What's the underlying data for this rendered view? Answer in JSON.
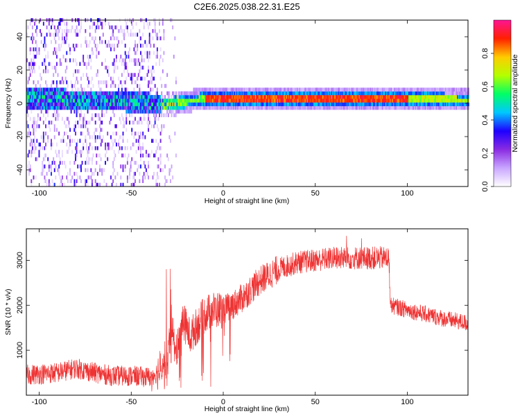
{
  "title": "C2E6.2025.038.22.31.E25",
  "chart_data": [
    {
      "type": "heatmap",
      "xlabel": "Height of straight line (km)",
      "ylabel": "Frequency (Hz)",
      "xlim": [
        -107,
        133
      ],
      "ylim": [
        -50,
        50
      ],
      "xticks": [
        -100,
        -50,
        0,
        50,
        100
      ],
      "yticks": [
        -40,
        -20,
        0,
        20,
        40
      ],
      "colorbar": {
        "label": "Normalized spectral amplitude",
        "range": [
          0,
          1
        ],
        "ticks": [
          "0.0",
          "0.2",
          "0.4",
          "0.6",
          "0.8"
        ],
        "colors": [
          "#ffffff",
          "#c9a6ff",
          "#8a2be2",
          "#1e00ff",
          "#00c8ff",
          "#00ff66",
          "#b4ff00",
          "#ffcc00",
          "#ff2000",
          "#ff1493"
        ]
      },
      "band": {
        "description_free": true,
        "center_profile": [
          {
            "x": -107,
            "f": 2
          },
          {
            "x": -80,
            "f": 1
          },
          {
            "x": -60,
            "f": 0.5
          },
          {
            "x": -40,
            "f": -1
          },
          {
            "x": -32,
            "f": -2
          },
          {
            "x": -20,
            "f": 0
          },
          {
            "x": -10,
            "f": 2
          },
          {
            "x": 0,
            "f": 2
          },
          {
            "x": 50,
            "f": 2
          },
          {
            "x": 100,
            "f": 2
          },
          {
            "x": 133,
            "f": 1
          }
        ]
      }
    },
    {
      "type": "line",
      "xlabel": "Height of straight line (km)",
      "ylabel": "SNR (10 * v/v)",
      "xlim": [
        -107,
        133
      ],
      "ylim": [
        0,
        3700
      ],
      "xticks": [
        -100,
        -50,
        0,
        50,
        100
      ],
      "yticks": [
        1000,
        2000,
        3000
      ],
      "color": "#ee3333",
      "trend": [
        {
          "x": -107,
          "y": 450
        },
        {
          "x": -90,
          "y": 500
        },
        {
          "x": -80,
          "y": 600
        },
        {
          "x": -70,
          "y": 500
        },
        {
          "x": -60,
          "y": 430
        },
        {
          "x": -50,
          "y": 430
        },
        {
          "x": -40,
          "y": 400
        },
        {
          "x": -36,
          "y": 500
        },
        {
          "x": -30,
          "y": 950
        },
        {
          "x": -28,
          "y": 1700
        },
        {
          "x": -26,
          "y": 800
        },
        {
          "x": -22,
          "y": 1700
        },
        {
          "x": -18,
          "y": 1300
        },
        {
          "x": -15,
          "y": 1500
        },
        {
          "x": -10,
          "y": 1800
        },
        {
          "x": -5,
          "y": 1900
        },
        {
          "x": 0,
          "y": 1900
        },
        {
          "x": 5,
          "y": 2000
        },
        {
          "x": 10,
          "y": 2150
        },
        {
          "x": 20,
          "y": 2550
        },
        {
          "x": 30,
          "y": 2800
        },
        {
          "x": 40,
          "y": 2950
        },
        {
          "x": 50,
          "y": 3000
        },
        {
          "x": 60,
          "y": 3050
        },
        {
          "x": 70,
          "y": 3050
        },
        {
          "x": 80,
          "y": 3050
        },
        {
          "x": 90,
          "y": 3050
        },
        {
          "x": 91,
          "y": 2000
        },
        {
          "x": 100,
          "y": 1900
        },
        {
          "x": 110,
          "y": 1800
        },
        {
          "x": 120,
          "y": 1700
        },
        {
          "x": 133,
          "y": 1600
        }
      ]
    }
  ]
}
